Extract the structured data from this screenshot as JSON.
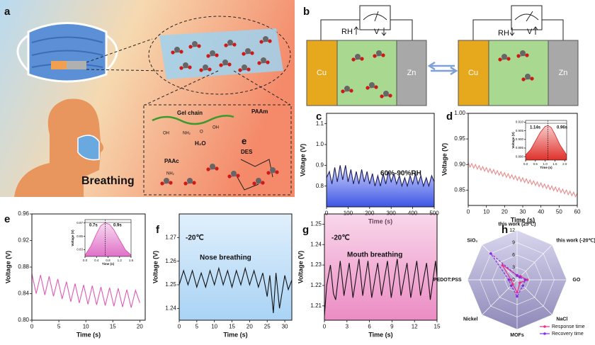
{
  "figure": {
    "a": {
      "panel": "a",
      "gel_chain": "Gel chain",
      "oh1": "OH",
      "nh2": "NH₂",
      "oh2": "OH",
      "o": "O",
      "water": "H₂O",
      "paam": "PAAm",
      "paac": "PAAc",
      "des": "DES",
      "e": "e",
      "breathing": "Breathing",
      "nh2b": "NH₂"
    },
    "b": {
      "panel": "b",
      "rh1": "RH",
      "v1": "V",
      "cu1": "Cu",
      "zn1": "Zn",
      "rh2": "RH",
      "v2": "V",
      "cu2": "Cu",
      "zn2": "Zn"
    }
  },
  "chart_data": [
    {
      "type": "line",
      "panel": "c",
      "xlabel": "Time (s)",
      "ylabel": "Voltage (V)",
      "annotations": [
        "60%-90%RH"
      ],
      "x": [
        0,
        13,
        25,
        38,
        50,
        63,
        75,
        88,
        100,
        113,
        125,
        138,
        150,
        163,
        175,
        188,
        200,
        213,
        225,
        238,
        250,
        263,
        275,
        288,
        300,
        313,
        325,
        338,
        350,
        363,
        375,
        388,
        400,
        413,
        425,
        438,
        450,
        463,
        475,
        488,
        500
      ],
      "values": [
        0.84,
        0.87,
        0.81,
        0.89,
        0.82,
        0.9,
        0.83,
        0.9,
        0.82,
        0.88,
        0.81,
        0.87,
        0.81,
        0.88,
        0.82,
        0.87,
        0.81,
        0.86,
        0.8,
        0.85,
        0.8,
        0.86,
        0.81,
        0.87,
        0.82,
        0.86,
        0.81,
        0.85,
        0.8,
        0.84,
        0.8,
        0.85,
        0.81,
        0.86,
        0.81,
        0.85,
        0.8,
        0.84,
        0.8,
        0.85,
        0.82
      ],
      "color": "#1c1c5e",
      "area": "#3d55e6",
      "xlim": [
        0,
        500
      ],
      "xticks": [
        0,
        100,
        200,
        300,
        400,
        500
      ],
      "ylim": [
        0.7,
        1.15
      ],
      "yticks": [
        0.8,
        0.9,
        {
          "value": 1,
          "label": "1.0"
        },
        1.1
      ]
    },
    {
      "type": "line",
      "panel": "d",
      "xlabel": "Time (s)",
      "ylabel": "Voltage (V)",
      "annotations": [],
      "x": [
        0,
        1,
        2,
        3,
        4,
        5,
        6,
        7,
        8,
        9,
        10,
        11,
        12,
        13,
        14,
        15,
        16,
        17,
        18,
        19,
        20,
        21,
        22,
        23,
        24,
        25,
        26,
        27,
        28,
        29,
        30,
        31,
        32,
        33,
        34,
        35,
        36,
        37,
        38,
        39,
        40,
        41,
        42,
        43,
        44,
        45,
        46,
        47,
        48,
        49,
        50,
        51,
        52,
        53,
        54,
        55,
        56,
        57,
        58,
        59,
        60
      ],
      "values": [
        0.904,
        0.895,
        0.902,
        0.893,
        0.9,
        0.891,
        0.898,
        0.889,
        0.896,
        0.887,
        0.894,
        0.885,
        0.892,
        0.883,
        0.89,
        0.881,
        0.888,
        0.879,
        0.886,
        0.877,
        0.884,
        0.875,
        0.882,
        0.873,
        0.88,
        0.871,
        0.878,
        0.869,
        0.876,
        0.867,
        0.874,
        0.865,
        0.872,
        0.863,
        0.87,
        0.861,
        0.868,
        0.859,
        0.866,
        0.857,
        0.864,
        0.855,
        0.862,
        0.853,
        0.86,
        0.851,
        0.858,
        0.849,
        0.856,
        0.847,
        0.854,
        0.845,
        0.852,
        0.843,
        0.85,
        0.841,
        0.848,
        0.839,
        0.846,
        0.837,
        0.844
      ],
      "color": "#e98c8c",
      "xlim": [
        0,
        60
      ],
      "xticks": [
        0,
        10,
        20,
        30,
        40,
        50,
        60
      ],
      "ylim": [
        0.82,
        1.0
      ],
      "yticks": [
        0.85,
        {
          "value": 0.9,
          "label": "0.90"
        },
        0.95,
        {
          "value": 1,
          "label": "1.00"
        }
      ]
    },
    {
      "type": "line",
      "xlabel": "Time (s)",
      "ylabel": "Voltage (V)",
      "annotations": [
        "1.14s",
        "0.96s"
      ],
      "x": [
        0,
        0.25,
        0.5,
        0.75,
        1.0,
        1.14,
        1.3,
        1.5,
        1.75,
        2.1
      ],
      "values": [
        0.891,
        0.894,
        0.899,
        0.904,
        0.9075,
        0.908,
        0.907,
        0.903,
        0.897,
        0.891
      ],
      "color": "#d42020",
      "area": "#e0302a",
      "xlim": [
        0,
        2.1
      ],
      "xticks": [
        {
          "value": 0,
          "label": "0.0"
        },
        0.5,
        {
          "value": 1,
          "label": "1.0"
        },
        1.5,
        {
          "value": 2,
          "label": "2.0"
        }
      ],
      "ylim": [
        0.888,
        0.911
      ],
      "yticks": [
        {
          "value": 0.89,
          "label": "0.890"
        },
        0.895,
        {
          "value": 0.9,
          "label": "0.900"
        },
        0.905,
        {
          "value": 0.91,
          "label": "0.910"
        }
      ]
    },
    {
      "type": "line",
      "panel": "e",
      "xlabel": "Time (s)",
      "ylabel": "Voltage (V)",
      "annotations": [],
      "x": [
        0,
        0.8,
        1.6,
        2.4,
        3.2,
        4.0,
        4.8,
        5.6,
        6.4,
        7.2,
        8.0,
        8.8,
        9.6,
        10.4,
        11.2,
        12.0,
        12.8,
        13.6,
        14.4,
        15.2,
        16.0,
        16.8,
        17.6,
        18.4,
        19.2,
        20.0
      ],
      "values": [
        0.87,
        0.84,
        0.868,
        0.838,
        0.866,
        0.836,
        0.862,
        0.832,
        0.858,
        0.828,
        0.855,
        0.826,
        0.853,
        0.824,
        0.852,
        0.823,
        0.85,
        0.822,
        0.849,
        0.821,
        0.848,
        0.82,
        0.846,
        0.819,
        0.845,
        0.826
      ],
      "color": "#e05ab4",
      "xlim": [
        0,
        21
      ],
      "xticks": [
        0,
        5,
        10,
        15,
        20
      ],
      "ylim": [
        0.8,
        0.96
      ],
      "yticks": [
        {
          "value": 0.8,
          "label": "0.80"
        },
        0.84,
        0.88,
        0.92,
        0.96
      ]
    },
    {
      "type": "line",
      "xlabel": "Time (s)",
      "ylabel": "Voltage (V)",
      "annotations": [
        "0.7s",
        "0.9s"
      ],
      "x": [
        0,
        0.2,
        0.4,
        0.55,
        0.7,
        0.85,
        1.0,
        1.2,
        1.4,
        1.6
      ],
      "values": [
        0.822,
        0.835,
        0.854,
        0.866,
        0.87,
        0.868,
        0.86,
        0.845,
        0.83,
        0.822
      ],
      "color": "#d94aa8",
      "area": "#e070c8",
      "xlim": [
        0,
        1.6
      ],
      "xticks": [
        {
          "value": 0,
          "label": "0.0"
        },
        0.4,
        0.8,
        1.2,
        1.6
      ],
      "ylim": [
        0.82,
        0.875
      ],
      "yticks": [
        0.83,
        0.85,
        0.87
      ]
    },
    {
      "type": "line",
      "panel": "f",
      "xlabel": "Time (s)",
      "ylabel": "Voltage (V)",
      "annotations": [
        "-20℃",
        "Nose breathing"
      ],
      "x": [
        0,
        1.25,
        2.5,
        3.75,
        5,
        6.25,
        7.5,
        8.75,
        10,
        11.25,
        12.5,
        13.75,
        15,
        16.25,
        17.5,
        18.75,
        20,
        21.25,
        22.5,
        23.75,
        25,
        25.75,
        26.75,
        27.5,
        28.5,
        30,
        31,
        32
      ],
      "values": [
        1.25,
        1.256,
        1.25,
        1.256,
        1.249,
        1.255,
        1.249,
        1.256,
        1.25,
        1.257,
        1.25,
        1.256,
        1.249,
        1.256,
        1.25,
        1.257,
        1.25,
        1.256,
        1.249,
        1.255,
        1.245,
        1.254,
        1.238,
        1.255,
        1.24,
        1.254,
        1.248,
        1.252
      ],
      "color": "#111111",
      "background": "#a9d3f5",
      "xlim": [
        0,
        32
      ],
      "xticks": [
        0,
        5,
        10,
        15,
        20,
        25,
        30
      ],
      "ylim": [
        1.235,
        1.28
      ],
      "yticks": [
        1.24,
        1.25,
        1.26,
        1.27
      ]
    },
    {
      "type": "line",
      "panel": "g",
      "xlabel": "Time (s)",
      "ylabel": "Voltage (V)",
      "annotations": [
        "-20℃",
        "Mouth breathing"
      ],
      "x": [
        0,
        0.3,
        0.8,
        1.2,
        1.5,
        2.1,
        2.6,
        3.3,
        3.8,
        4.6,
        5.1,
        5.8,
        6.3,
        7.1,
        7.6,
        8.4,
        8.9,
        9.7,
        10.2,
        11,
        11.5,
        12.3,
        12.8,
        13.6,
        14.1,
        14.8,
        15
      ],
      "values": [
        1.205,
        1.22,
        1.23,
        1.216,
        1.213,
        1.232,
        1.215,
        1.231,
        1.214,
        1.233,
        1.215,
        1.232,
        1.214,
        1.231,
        1.215,
        1.232,
        1.214,
        1.233,
        1.215,
        1.231,
        1.214,
        1.232,
        1.215,
        1.231,
        1.213,
        1.232,
        1.224
      ],
      "color": "#111111",
      "background": "#ec8cc4",
      "xlim": [
        0,
        15
      ],
      "xticks": [
        0,
        3,
        6,
        9,
        12,
        15
      ],
      "ylim": [
        1.203,
        1.255
      ],
      "yticks": [
        1.21,
        1.22,
        1.23,
        1.24,
        1.25
      ]
    },
    {
      "type": "radar",
      "panel": "h",
      "categories": [
        "this work (25℃)",
        "this work (-20℃)",
        "GO",
        "NaCl",
        "MOFs",
        "Nickel",
        "PEDOT:PSS",
        "SiO₂"
      ],
      "series": [
        {
          "name": "Response time",
          "color": "#e8308c",
          "values": [
            1.1,
            1.2,
            2.5,
            1,
            3,
            1.5,
            1.5,
            5
          ]
        },
        {
          "name": "Recovery time",
          "color": "#8a2be2",
          "values": [
            1,
            0.9,
            2,
            2,
            4,
            2,
            2,
            9
          ]
        }
      ],
      "rlim": [
        0,
        12
      ],
      "rticks": [
        0,
        3,
        6,
        9,
        12
      ],
      "legend": "lower right"
    }
  ]
}
